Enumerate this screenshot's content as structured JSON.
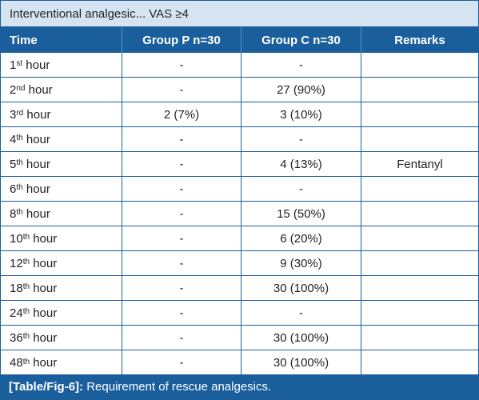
{
  "title": "Interventional analgesic... VAS ≥4",
  "headers": {
    "time": "Time",
    "group_p": "Group P n=30",
    "group_c": "Group C n=30",
    "remarks": "Remarks"
  },
  "rows": [
    {
      "num": "1",
      "sup": "st",
      "unit": " hour",
      "group_p": "-",
      "group_c": "-",
      "remarks": ""
    },
    {
      "num": "2",
      "sup": "nd",
      "unit": " hour",
      "group_p": "-",
      "group_c": "27 (90%)",
      "remarks": ""
    },
    {
      "num": "3",
      "sup": "rd",
      "unit": " hour",
      "group_p": "2 (7%)",
      "group_c": "3 (10%)",
      "remarks": ""
    },
    {
      "num": "4",
      "sup": "th",
      "unit": " hour",
      "group_p": "-",
      "group_c": "-",
      "remarks": ""
    },
    {
      "num": "5",
      "sup": "th",
      "unit": " hour",
      "group_p": "-",
      "group_c": "4 (13%)",
      "remarks": "Fentanyl"
    },
    {
      "num": "6",
      "sup": "th",
      "unit": " hour",
      "group_p": "-",
      "group_c": "-",
      "remarks": ""
    },
    {
      "num": "8",
      "sup": "th",
      "unit": " hour",
      "group_p": "-",
      "group_c": "15 (50%)",
      "remarks": ""
    },
    {
      "num": "10",
      "sup": "th",
      "unit": " hour",
      "group_p": "-",
      "group_c": "6 (20%)",
      "remarks": ""
    },
    {
      "num": "12",
      "sup": "th",
      "unit": " hour",
      "group_p": "-",
      "group_c": "9 (30%)",
      "remarks": ""
    },
    {
      "num": "18",
      "sup": "th",
      "unit": " hour",
      "group_p": "-",
      "group_c": "30 (100%)",
      "remarks": ""
    },
    {
      "num": "24",
      "sup": "th",
      "unit": " hour",
      "group_p": "-",
      "group_c": "-",
      "remarks": ""
    },
    {
      "num": "36",
      "sup": "th",
      "unit": " hour",
      "group_p": "-",
      "group_c": "30 (100%)",
      "remarks": ""
    },
    {
      "num": "48",
      "sup": "th",
      "unit": " hour",
      "group_p": "-",
      "group_c": "30 (100%)",
      "remarks": ""
    }
  ],
  "caption": {
    "label": "[Table/Fig-6]:",
    "text": " Requirement of rescue analgesics."
  },
  "colors": {
    "border": "#1a5f9c",
    "header_bg": "#1a5f9c",
    "title_bg": "#d6e4f2"
  }
}
